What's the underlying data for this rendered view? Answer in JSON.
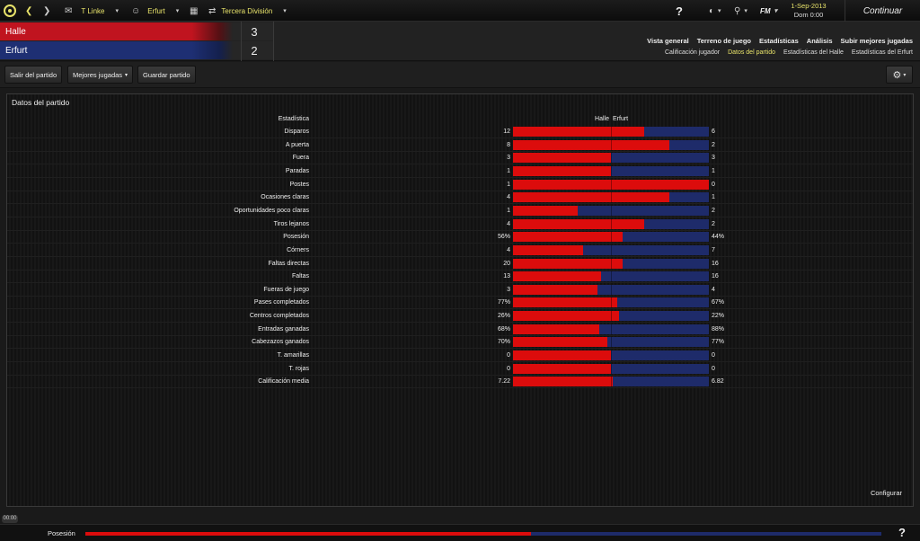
{
  "topbar": {
    "manager": "T Linke",
    "club": "Erfurt",
    "competition": "Tercera División",
    "date": "1-Sep-2013",
    "day_time": "Dom 0:00",
    "continue_label": "Continuar",
    "fm_label": "FM"
  },
  "scoreboard": {
    "home_team": "Halle",
    "home_score": "3",
    "away_team": "Erfurt",
    "away_score": "2",
    "home_color": "#c0141f",
    "away_color": "#1e2f73"
  },
  "tabs": [
    "Vista general",
    "Terreno de juego",
    "Estadísticas",
    "Análisis",
    "Subir mejores jugadas"
  ],
  "subtabs": [
    "Calificación jugador",
    "Datos del partido",
    "Estadísticas del Halle",
    "Estadísticas del Erfurt"
  ],
  "active_subtab": 1,
  "toolbar": {
    "exit_label": "Salir del partido",
    "highlights_label": "Mejores jugadas",
    "save_label": "Guardar partido"
  },
  "panel": {
    "title": "Datos del partido",
    "stat_header": "Estadística",
    "home_header": "Halle",
    "away_header": "Erfurt",
    "configure_label": "Configurar"
  },
  "stats": [
    {
      "label": "Disparos",
      "home": "12",
      "away": "6",
      "home_share": 0.67
    },
    {
      "label": "A puerta",
      "home": "8",
      "away": "2",
      "home_share": 0.8
    },
    {
      "label": "Fuera",
      "home": "3",
      "away": "3",
      "home_share": 0.5
    },
    {
      "label": "Paradas",
      "home": "1",
      "away": "1",
      "home_share": 0.5
    },
    {
      "label": "Postes",
      "home": "1",
      "away": "0",
      "home_share": 1.0
    },
    {
      "label": "Ocasiones claras",
      "home": "4",
      "away": "1",
      "home_share": 0.8
    },
    {
      "label": "Oportunidades poco claras",
      "home": "1",
      "away": "2",
      "home_share": 0.33
    },
    {
      "label": "Tiros lejanos",
      "home": "4",
      "away": "2",
      "home_share": 0.67
    },
    {
      "label": "Posesión",
      "home": "56%",
      "away": "44%",
      "home_share": 0.56
    },
    {
      "label": "Córners",
      "home": "4",
      "away": "7",
      "home_share": 0.36
    },
    {
      "label": "Faltas directas",
      "home": "20",
      "away": "16",
      "home_share": 0.56
    },
    {
      "label": "Faltas",
      "home": "13",
      "away": "16",
      "home_share": 0.45
    },
    {
      "label": "Fueras de juego",
      "home": "3",
      "away": "4",
      "home_share": 0.43
    },
    {
      "label": "Pases completados",
      "home": "77%",
      "away": "67%",
      "home_share": 0.53
    },
    {
      "label": "Centros completados",
      "home": "26%",
      "away": "22%",
      "home_share": 0.54
    },
    {
      "label": "Entradas ganadas",
      "home": "68%",
      "away": "88%",
      "home_share": 0.44
    },
    {
      "label": "Cabezazos ganados",
      "home": "70%",
      "away": "77%",
      "home_share": 0.48
    },
    {
      "label": "T. amarillas",
      "home": "0",
      "away": "0",
      "home_share": 0.5
    },
    {
      "label": "T. rojas",
      "home": "0",
      "away": "0",
      "home_share": 0.5
    },
    {
      "label": "Calificación media",
      "home": "7.22",
      "away": "6.82",
      "home_share": 0.51
    }
  ],
  "bottom": {
    "time": "00:00",
    "possession_label": "Posesión",
    "possession_home": 0.56
  },
  "colors": {
    "home_bar": "#dc0c0c",
    "away_bar": "#1e2b6a",
    "accent": "#e8e36a"
  }
}
